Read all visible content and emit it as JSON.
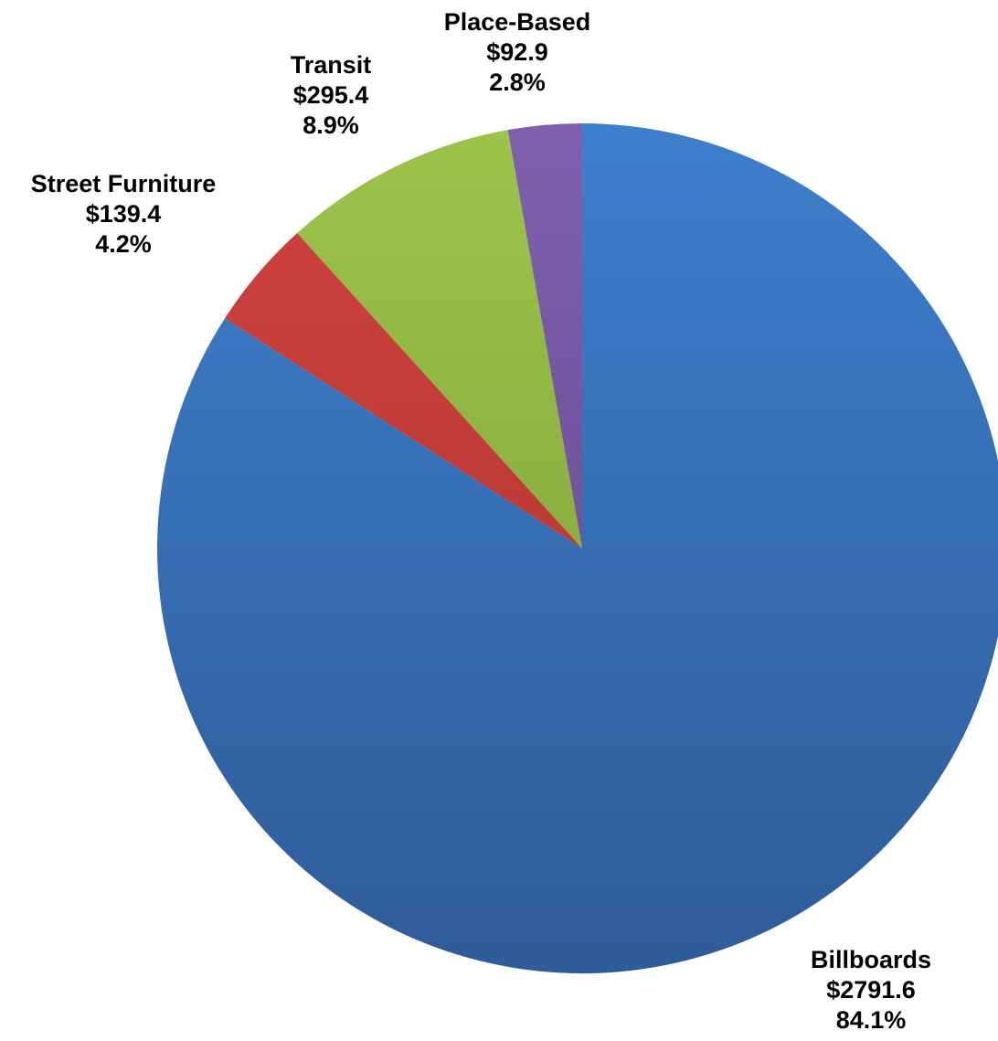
{
  "chart_data": {
    "type": "pie",
    "title": "",
    "start": "top",
    "direction": "clockwise",
    "slices": [
      {
        "label": "Billboards",
        "value_label": "$2791.6",
        "pct_label": "84.1%",
        "value": 2791.6,
        "pct": 84.1,
        "color_top": "#3D7FCC",
        "color_bottom": "#2F5C99"
      },
      {
        "label": "Street Furniture",
        "value_label": "$139.4",
        "pct_label": "4.2%",
        "value": 139.4,
        "pct": 4.2,
        "color_top": "#D0443F",
        "color_bottom": "#A8302C"
      },
      {
        "label": "Transit",
        "value_label": "$295.4",
        "pct_label": "8.9%",
        "value": 295.4,
        "pct": 8.9,
        "color_top": "#9CC44A",
        "color_bottom": "#7A9A36"
      },
      {
        "label": "Place-Based",
        "value_label": "$92.9",
        "pct_label": "2.8%",
        "value": 92.9,
        "pct": 2.8,
        "color_top": "#8060AE",
        "color_bottom": "#5E4584"
      }
    ]
  }
}
